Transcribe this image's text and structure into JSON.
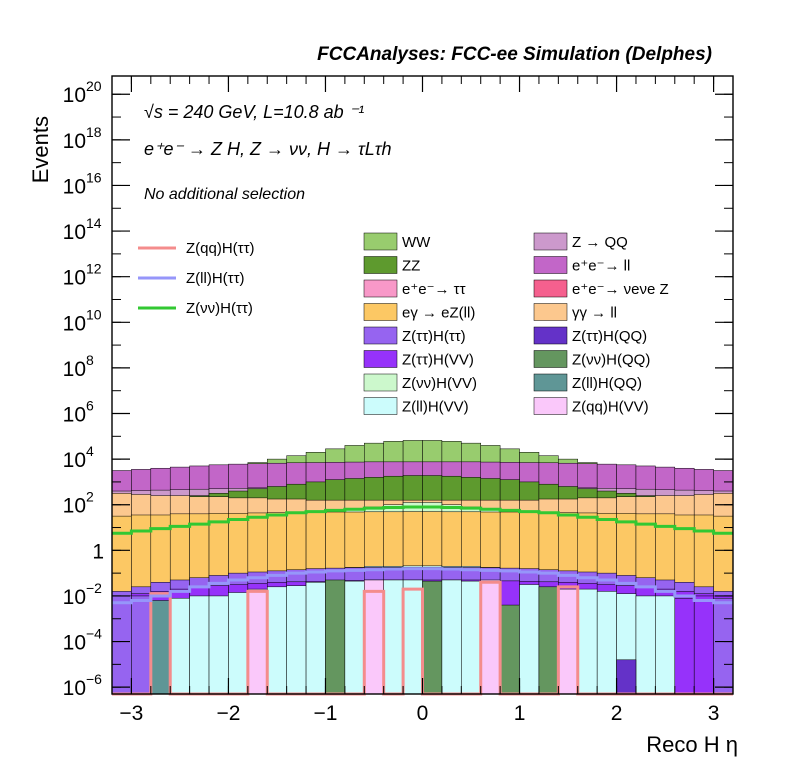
{
  "chart_data": {
    "type": "stacked-histogram",
    "title": "FCCAnalyses: FCC-ee Simulation (Delphes)",
    "xlabel": "Reco H η",
    "ylabel": "Events",
    "xlim": [
      -3.2,
      3.2
    ],
    "ylim_log10": [
      -6.3,
      20.8
    ],
    "log_y": true,
    "annotations": {
      "sqrts": "√s = 240 GeV, L=10.8 ab ⁻¹",
      "process": "e⁺e⁻ → Z H, Z → νν, H → τLτh",
      "selection": "No additional selection"
    },
    "x_ticks": [
      {
        "v": -3,
        "label": "−3"
      },
      {
        "v": -2,
        "label": "−2"
      },
      {
        "v": -1,
        "label": "−1"
      },
      {
        "v": 0,
        "label": "0"
      },
      {
        "v": 1,
        "label": "1"
      },
      {
        "v": 2,
        "label": "2"
      },
      {
        "v": 3,
        "label": "3"
      }
    ],
    "y_ticks": [
      {
        "e": -6,
        "label": "10",
        "sup": "−6"
      },
      {
        "e": -4,
        "label": "10",
        "sup": "−4"
      },
      {
        "e": -2,
        "label": "10",
        "sup": "−2"
      },
      {
        "e": 0,
        "label": "1",
        "sup": ""
      },
      {
        "e": 2,
        "label": "10",
        "sup": "2"
      },
      {
        "e": 4,
        "label": "10",
        "sup": "4"
      },
      {
        "e": 6,
        "label": "10",
        "sup": "6"
      },
      {
        "e": 8,
        "label": "10",
        "sup": "8"
      },
      {
        "e": 10,
        "label": "10",
        "sup": "10"
      },
      {
        "e": 12,
        "label": "10",
        "sup": "12"
      },
      {
        "e": 14,
        "label": "10",
        "sup": "14"
      },
      {
        "e": 16,
        "label": "10",
        "sup": "16"
      },
      {
        "e": 18,
        "label": "10",
        "sup": "18"
      },
      {
        "e": 20,
        "label": "10",
        "sup": "20"
      }
    ],
    "bins": {
      "x_min": -3.2,
      "x_max": 3.2,
      "n": 32
    },
    "stacked_backgrounds": [
      {
        "name": "e⁺e⁻→ ττ",
        "color": "#f898c8",
        "log10": [
          2.8,
          2.95,
          3.05,
          3.15,
          3.25,
          3.35,
          3.45,
          3.55,
          3.6,
          3.65,
          3.7,
          3.75,
          3.78,
          3.8,
          3.82,
          3.82,
          3.82,
          3.82,
          3.8,
          3.78,
          3.75,
          3.7,
          3.65,
          3.6,
          3.55,
          3.45,
          3.35,
          3.25,
          3.15,
          3.05,
          2.95,
          2.8
        ]
      },
      {
        "name": "WW",
        "color": "#98cc6e",
        "log10": [
          2.8,
          2.95,
          3.1,
          3.25,
          3.4,
          3.55,
          3.7,
          3.85,
          4.0,
          4.15,
          4.3,
          4.45,
          4.6,
          4.7,
          4.78,
          4.82,
          4.82,
          4.78,
          4.7,
          4.6,
          4.45,
          4.3,
          4.15,
          4.0,
          3.85,
          3.7,
          3.55,
          3.4,
          3.25,
          3.1,
          2.95,
          2.8
        ]
      },
      {
        "name": "e⁺e⁻ → ll",
        "color": "#c266c8",
        "log10": [
          3.5,
          3.55,
          3.6,
          3.65,
          3.7,
          3.75,
          3.78,
          3.8,
          3.82,
          3.84,
          3.85,
          3.86,
          3.87,
          3.88,
          3.88,
          3.88,
          3.88,
          3.88,
          3.88,
          3.87,
          3.86,
          3.85,
          3.84,
          3.82,
          3.8,
          3.78,
          3.75,
          3.7,
          3.65,
          3.6,
          3.55,
          3.5
        ]
      },
      {
        "name": "Z → QQ",
        "color": "#cc99cc",
        "log10": [
          2.6,
          2.62,
          2.64,
          2.66,
          2.68,
          2.7,
          2.72,
          2.74,
          2.75,
          2.76,
          2.77,
          2.78,
          2.78,
          2.79,
          2.79,
          2.79,
          2.79,
          2.79,
          2.79,
          2.78,
          2.78,
          2.77,
          2.76,
          2.75,
          2.74,
          2.72,
          2.7,
          2.68,
          2.66,
          2.64,
          2.62,
          2.6
        ]
      },
      {
        "name": "ZZ",
        "color": "#5e9a2e",
        "log10": [
          2.0,
          2.1,
          2.2,
          2.3,
          2.4,
          2.5,
          2.6,
          2.7,
          2.8,
          2.9,
          3.0,
          3.1,
          3.15,
          3.2,
          3.25,
          3.28,
          3.28,
          3.25,
          3.2,
          3.15,
          3.1,
          3.0,
          2.9,
          2.8,
          2.7,
          2.6,
          2.5,
          2.4,
          2.3,
          2.2,
          2.1,
          2.0
        ]
      },
      {
        "name": "e⁺e⁻ → νeνe Z",
        "color": "#f5608e",
        "log10": [
          1.2,
          1.25,
          1.3,
          1.35,
          1.4,
          1.45,
          1.5,
          1.55,
          1.6,
          1.6,
          1.65,
          1.65,
          1.7,
          1.7,
          1.7,
          1.7,
          1.7,
          1.7,
          1.7,
          1.7,
          1.65,
          1.65,
          1.6,
          1.6,
          1.55,
          1.5,
          1.45,
          1.4,
          1.35,
          1.3,
          1.25,
          1.2
        ]
      },
      {
        "name": "γγ → ll",
        "color": "#fcc88e",
        "log10": [
          2.5,
          2.45,
          2.4,
          2.4,
          2.35,
          2.35,
          2.3,
          2.3,
          2.25,
          2.25,
          2.2,
          2.2,
          2.2,
          2.2,
          2.2,
          2.2,
          2.2,
          2.2,
          2.2,
          2.2,
          2.2,
          2.2,
          2.25,
          2.25,
          2.3,
          2.3,
          2.35,
          2.35,
          2.4,
          2.4,
          2.45,
          2.5
        ]
      },
      {
        "name": "Z(νν)H(VV)",
        "color": "#ccf8cc",
        "log10": [
          0.2,
          0.3,
          0.4,
          0.5,
          0.7,
          0.85,
          1.0,
          1.15,
          1.3,
          1.4,
          1.55,
          1.7,
          1.8,
          1.9,
          2.0,
          2.1,
          2.1,
          2.0,
          1.9,
          1.8,
          1.7,
          1.55,
          1.4,
          1.3,
          1.15,
          1.0,
          0.85,
          0.7,
          0.5,
          0.4,
          0.3,
          0.2
        ]
      },
      {
        "name": "eγ → eZ(ll)",
        "color": "#fcc864",
        "log10": [
          1.5,
          1.55,
          1.55,
          1.6,
          1.6,
          1.62,
          1.62,
          1.64,
          1.65,
          1.66,
          1.67,
          1.68,
          1.68,
          1.69,
          1.69,
          1.7,
          1.7,
          1.69,
          1.69,
          1.68,
          1.68,
          1.67,
          1.66,
          1.65,
          1.64,
          1.62,
          1.62,
          1.6,
          1.6,
          1.55,
          1.55,
          1.5
        ]
      },
      {
        "name": "Z(ll)H(VV)",
        "color": "#ccfcfc",
        "log10": [
          -2.2,
          -2.0,
          -1.8,
          -1.6,
          -1.4,
          -1.3,
          -1.2,
          -1.1,
          -1.0,
          -0.9,
          -0.85,
          -0.8,
          -0.75,
          -0.7,
          -0.7,
          -0.68,
          -0.68,
          -0.7,
          -0.7,
          -0.75,
          -0.8,
          -0.85,
          -0.9,
          -1.0,
          -1.1,
          -1.2,
          -1.3,
          -1.4,
          -1.6,
          -1.8,
          -2.0,
          -2.2
        ]
      },
      {
        "name": "Z(ττ)H(ττ)",
        "color": "#9664f0",
        "log10": [
          -1.8,
          -1.6,
          -1.4,
          -1.3,
          -1.2,
          -1.1,
          -1.0,
          -0.95,
          -0.9,
          -0.85,
          -0.8,
          -0.78,
          -0.76,
          -0.75,
          -0.74,
          -0.74,
          -0.74,
          -0.74,
          -0.75,
          -0.76,
          -0.78,
          -0.8,
          -0.85,
          -0.9,
          -0.95,
          -1.0,
          -1.1,
          -1.2,
          -1.3,
          -1.4,
          -1.6,
          -1.8
        ]
      },
      {
        "name": "Z(ττ)H(VV)",
        "color": "#9632fa",
        "log10": [
          -2.0,
          -1.9,
          -1.8,
          -1.7,
          -1.6,
          -1.55,
          -1.5,
          -1.45,
          -1.4,
          -1.38,
          -1.36,
          -1.34,
          -1.32,
          -1.3,
          -1.3,
          -1.3,
          -1.3,
          -1.3,
          -1.3,
          -1.32,
          -1.34,
          -1.36,
          -1.38,
          -1.4,
          -1.45,
          -1.5,
          -1.55,
          -1.6,
          -1.7,
          -1.8,
          -1.9,
          -2.0
        ]
      }
    ],
    "background_legend_extra": [
      {
        "name": "Z(ττ)H(QQ)",
        "color": "#6432c8"
      },
      {
        "name": "Z(νν)H(QQ)",
        "color": "#64965f"
      },
      {
        "name": "Z(ll)H(QQ)",
        "color": "#5f9696"
      },
      {
        "name": "Z(qq)H(VV)",
        "color": "#fac8fa"
      }
    ],
    "bottom_bins": [
      {
        "bin": 0,
        "log10": -2.0,
        "color": "#9664f0"
      },
      {
        "bin": 1,
        "log10": -2.0,
        "color": "#9664f0"
      },
      {
        "bin": 2,
        "log10": -2.2,
        "color": "#5f9696"
      },
      {
        "bin": 3,
        "log10": -2.1,
        "color": "#ccfcfc"
      },
      {
        "bin": 4,
        "log10": -2.0,
        "color": "#ccfcfc"
      },
      {
        "bin": 5,
        "log10": -2.0,
        "color": "#ccfcfc"
      },
      {
        "bin": 6,
        "log10": -1.85,
        "color": "#ccfcfc"
      },
      {
        "bin": 7,
        "log10": -1.7,
        "color": "#fac8fa"
      },
      {
        "bin": 8,
        "log10": -1.6,
        "color": "#ccfcfc"
      },
      {
        "bin": 9,
        "log10": -1.55,
        "color": "#ccfcfc"
      },
      {
        "bin": 10,
        "log10": -1.4,
        "color": "#ccfcfc"
      },
      {
        "bin": 11,
        "log10": -1.3,
        "color": "#64965f"
      },
      {
        "bin": 12,
        "log10": -1.35,
        "color": "#ccfcfc"
      },
      {
        "bin": 13,
        "log10": -1.3,
        "color": "#fac8fa"
      },
      {
        "bin": 14,
        "log10": -1.3,
        "color": "#ccfcfc"
      },
      {
        "bin": 15,
        "log10": -1.3,
        "color": "#ccfcfc"
      },
      {
        "bin": 16,
        "log10": -1.35,
        "color": "#64965f"
      },
      {
        "bin": 17,
        "log10": -1.3,
        "color": "#ccfcfc"
      },
      {
        "bin": 18,
        "log10": -1.35,
        "color": "#ccfcfc"
      },
      {
        "bin": 19,
        "log10": -1.3,
        "color": "#fac8fa"
      },
      {
        "bin": 20,
        "log10": -2.4,
        "color": "#64965f"
      },
      {
        "bin": 21,
        "log10": -1.5,
        "color": "#ccfcfc"
      },
      {
        "bin": 22,
        "log10": -1.6,
        "color": "#64965f"
      },
      {
        "bin": 23,
        "log10": -1.7,
        "color": "#fac8fa"
      },
      {
        "bin": 24,
        "log10": -1.7,
        "color": "#ccfcfc"
      },
      {
        "bin": 25,
        "log10": -1.8,
        "color": "#ccfcfc"
      },
      {
        "bin": 26,
        "log10": -1.9,
        "color": "#ccfcfc"
      },
      {
        "bin": 27,
        "log10": -2.0,
        "color": "#ccfcfc"
      },
      {
        "bin": 28,
        "log10": -2.0,
        "color": "#ccfcfc"
      },
      {
        "bin": 29,
        "log10": -2.1,
        "color": "#9632fa"
      },
      {
        "bin": 30,
        "log10": -2.0,
        "color": "#9632fa"
      },
      {
        "bin": 31,
        "log10": -2.1,
        "color": "#9664f0"
      }
    ],
    "extra_bars": [
      {
        "bin": 26,
        "log10": -4.8,
        "color": "#6432c8"
      }
    ],
    "signals": [
      {
        "name": "Z(qq)H(ττ)",
        "color": "#f48c8c",
        "log10": [
          -6.3,
          -6.3,
          -1.9,
          -6.3,
          -6.3,
          -6.3,
          -6.3,
          -1.8,
          -6.3,
          -6.3,
          -6.3,
          -6.3,
          -6.3,
          -1.8,
          -6.3,
          -1.7,
          -6.3,
          -6.3,
          -6.3,
          -1.4,
          -6.3,
          -6.3,
          -6.3,
          -1.6,
          -6.3,
          -6.3,
          -6.3,
          -6.3,
          -6.3,
          -6.3,
          -6.3,
          -6.3
        ]
      },
      {
        "name": "Z(ll)H(ττ)",
        "color": "#9696fa",
        "log10": [
          -2.3,
          -2.2,
          -2.0,
          -1.8,
          -1.6,
          -1.45,
          -1.3,
          -1.2,
          -1.1,
          -1.0,
          -0.95,
          -0.9,
          -0.88,
          -0.85,
          -0.82,
          -0.8,
          -0.8,
          -0.82,
          -0.85,
          -0.88,
          -0.9,
          -0.95,
          -1.0,
          -1.1,
          -1.2,
          -1.3,
          -1.45,
          -1.6,
          -1.8,
          -2.0,
          -2.2,
          -2.3
        ]
      },
      {
        "name": "Z(νν)H(ττ)",
        "color": "#32c832",
        "log10": [
          0.75,
          0.85,
          0.95,
          1.05,
          1.15,
          1.25,
          1.35,
          1.45,
          1.55,
          1.65,
          1.7,
          1.75,
          1.8,
          1.85,
          1.88,
          1.9,
          1.9,
          1.88,
          1.85,
          1.8,
          1.75,
          1.7,
          1.65,
          1.55,
          1.45,
          1.35,
          1.25,
          1.15,
          1.05,
          0.95,
          0.85,
          0.75
        ]
      }
    ],
    "legend_signals": [
      "Z(qq)H(ττ)",
      "Z(ll)H(ττ)",
      "Z(νν)H(ττ)"
    ],
    "legend_backgrounds": [
      [
        "WW",
        "#98cc6e"
      ],
      [
        "Z → QQ",
        "#cc99cc"
      ],
      [
        "ZZ",
        "#5e9a2e"
      ],
      [
        "e⁺e⁻→ ll",
        "#c266c8"
      ],
      [
        "e⁺e⁻→ ττ",
        "#f898c8"
      ],
      [
        "e⁺e⁻→ νeνe Z",
        "#f5608e"
      ],
      [
        "eγ → eZ(ll)",
        "#fcc864"
      ],
      [
        "γγ → ll",
        "#fcc88e"
      ],
      [
        "Z(ττ)H(ττ)",
        "#9664f0"
      ],
      [
        "Z(ττ)H(QQ)",
        "#6432c8"
      ],
      [
        "Z(ττ)H(VV)",
        "#9632fa"
      ],
      [
        "Z(νν)H(QQ)",
        "#64965f"
      ],
      [
        "Z(νν)H(VV)",
        "#ccf8cc"
      ],
      [
        "Z(ll)H(QQ)",
        "#5f9696"
      ],
      [
        "Z(ll)H(VV)",
        "#ccfcfc"
      ],
      [
        "Z(qq)H(VV)",
        "#fac8fa"
      ]
    ]
  }
}
